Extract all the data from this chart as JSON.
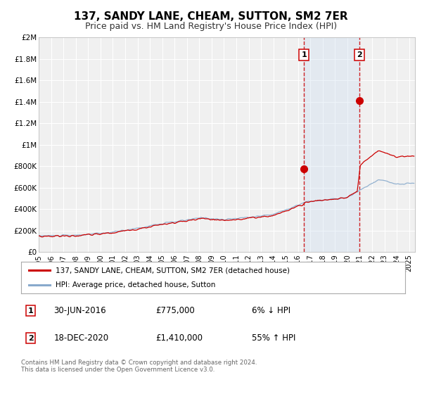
{
  "title": "137, SANDY LANE, CHEAM, SUTTON, SM2 7ER",
  "subtitle": "Price paid vs. HM Land Registry's House Price Index (HPI)",
  "title_fontsize": 11,
  "subtitle_fontsize": 9,
  "background_color": "#ffffff",
  "plot_bg_color": "#f0f0f0",
  "grid_color": "#ffffff",
  "red_line_color": "#cc0000",
  "blue_line_color": "#88aacc",
  "shade_color": "#ccddf0",
  "ylim": [
    0,
    2000000
  ],
  "xlim_start": 1995.0,
  "xlim_end": 2025.5,
  "vline1_x": 2016.5,
  "vline2_x": 2020.96,
  "sale1_x": 2016.5,
  "sale1_y": 775000,
  "sale2_x": 2020.96,
  "sale2_y": 1410000,
  "legend_red_label": "137, SANDY LANE, CHEAM, SUTTON, SM2 7ER (detached house)",
  "legend_blue_label": "HPI: Average price, detached house, Sutton",
  "ann1_label": "1",
  "ann1_date": "30-JUN-2016",
  "ann1_price": "£775,000",
  "ann1_hpi": "6% ↓ HPI",
  "ann2_label": "2",
  "ann2_date": "18-DEC-2020",
  "ann2_price": "£1,410,000",
  "ann2_hpi": "55% ↑ HPI",
  "footer": "Contains HM Land Registry data © Crown copyright and database right 2024.\nThis data is licensed under the Open Government Licence v3.0.",
  "yticks": [
    0,
    200000,
    400000,
    600000,
    800000,
    1000000,
    1200000,
    1400000,
    1600000,
    1800000,
    2000000
  ],
  "ytick_labels": [
    "£0",
    "£200K",
    "£400K",
    "£600K",
    "£800K",
    "£1M",
    "£1.2M",
    "£1.4M",
    "£1.6M",
    "£1.8M",
    "£2M"
  ]
}
